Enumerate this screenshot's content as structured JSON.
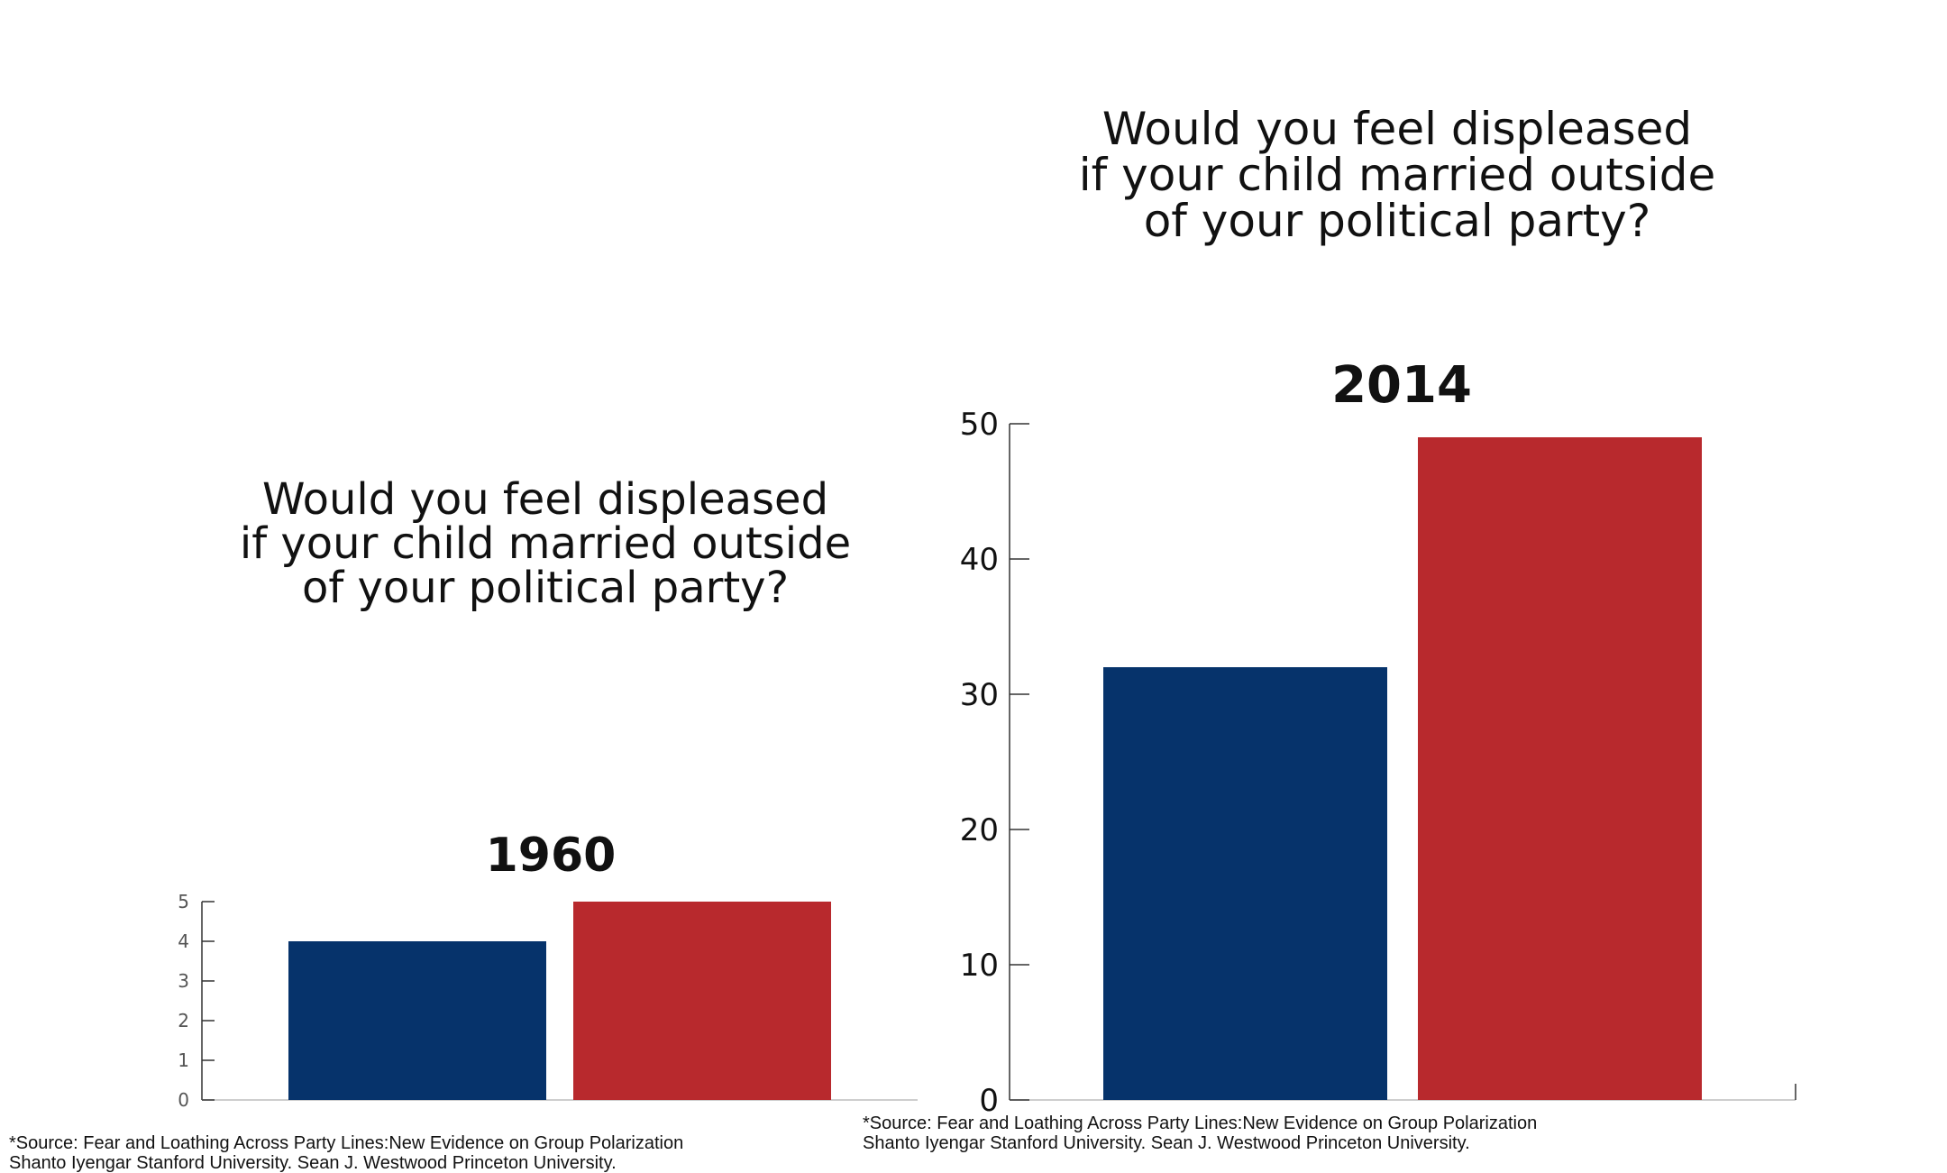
{
  "colors": {
    "blue": "#06336b",
    "red": "#b8292d",
    "axis": "#333333"
  },
  "left_panel": {
    "question_lines": [
      "Would you feel displeased",
      "if your child married outside",
      "of your political party?"
    ],
    "source_lines": [
      "*Source: Fear and Loathing Across Party Lines:New Evidence on Group Polarization",
      "Shanto Iyengar Stanford University. Sean J. Westwood Princeton University."
    ]
  },
  "right_panel": {
    "question_lines": [
      "Would you feel displeased",
      "if your child married outside",
      "of your political party?"
    ],
    "source_lines": [
      "*Source: Fear and Loathing Across Party Lines:New Evidence on Group Polarization",
      "Shanto Iyengar Stanford University. Sean J. Westwood Princeton University."
    ]
  },
  "chart_data": [
    {
      "type": "bar",
      "title": "1960",
      "values": [
        4,
        5
      ],
      "bar_colors": [
        "#06336b",
        "#b8292d"
      ],
      "ylim": [
        0,
        5
      ],
      "yticks": [
        0,
        1,
        2,
        3,
        4,
        5
      ],
      "grid": false
    },
    {
      "type": "bar",
      "title": "2014",
      "values": [
        32,
        49
      ],
      "bar_colors": [
        "#06336b",
        "#b8292d"
      ],
      "ylim": [
        0,
        50
      ],
      "yticks": [
        0,
        10,
        20,
        30,
        40,
        50
      ],
      "grid": false
    }
  ]
}
